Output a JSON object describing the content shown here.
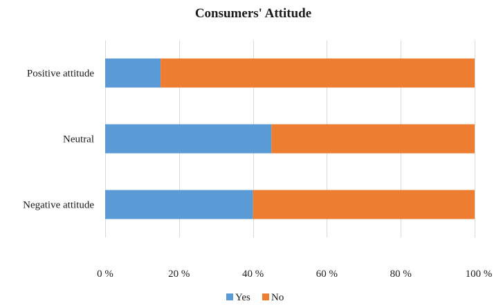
{
  "chart_data": {
    "type": "bar",
    "orientation": "horizontal",
    "stacked": true,
    "percent_stacked": true,
    "title": "Consumers' Attitude",
    "xlabel": "",
    "ylabel": "",
    "categories": [
      "Positive attitude",
      "Neutral",
      "Negative attitude"
    ],
    "series": [
      {
        "name": "Yes",
        "color": "#5b9bd5",
        "values": [
          15,
          45,
          40
        ]
      },
      {
        "name": "No",
        "color": "#ed7d31",
        "values": [
          85,
          55,
          60
        ]
      }
    ],
    "xlim": [
      0,
      100
    ],
    "x_ticks": [
      "0 %",
      "20 %",
      "40 %",
      "60 %",
      "80 %",
      "100 %"
    ],
    "grid": true,
    "legend_position": "bottom"
  }
}
